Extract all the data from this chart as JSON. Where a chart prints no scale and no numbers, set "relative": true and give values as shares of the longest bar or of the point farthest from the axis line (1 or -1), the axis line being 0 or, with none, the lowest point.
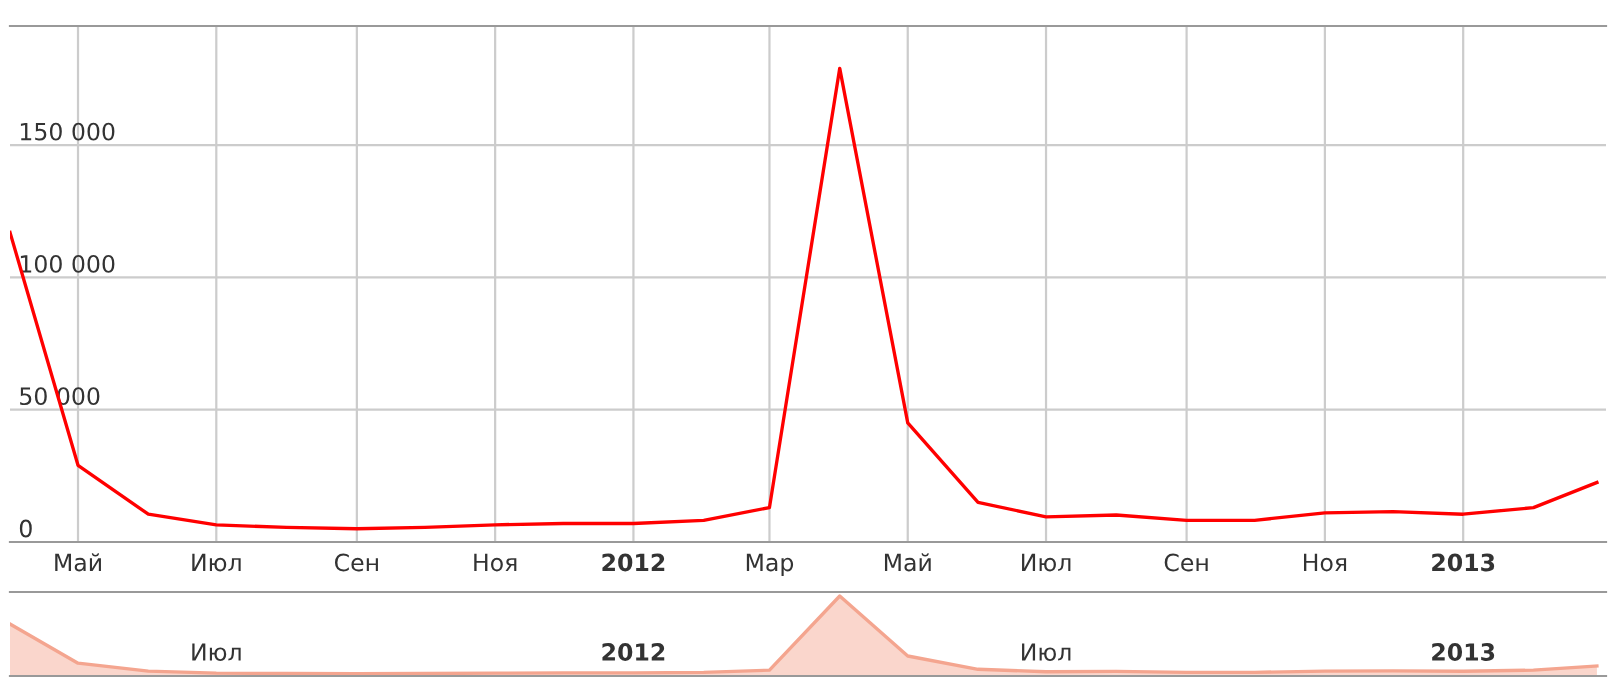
{
  "chart_data": [
    {
      "type": "line",
      "x": [
        "2011-04",
        "2011-05",
        "2011-06",
        "2011-07",
        "2011-08",
        "2011-09",
        "2011-10",
        "2011-11",
        "2011-12",
        "2012-01",
        "2012-02",
        "2012-03",
        "2012-04",
        "2012-05",
        "2012-06",
        "2012-07",
        "2012-08",
        "2012-09",
        "2012-10",
        "2012-11",
        "2012-12",
        "2013-01",
        "2013-02",
        "2013-03"
      ],
      "series": [
        {
          "color": "#ff0000",
          "values": [
            117000,
            29000,
            10500,
            6500,
            5500,
            5000,
            5500,
            6500,
            7000,
            7000,
            8200,
            13000,
            179000,
            45000,
            15000,
            9500,
            10200,
            8200,
            8200,
            11000,
            11500,
            10500,
            13000,
            22500
          ]
        }
      ],
      "xlim": [
        "2011-04-01",
        "2013-03-05"
      ],
      "xticks": [
        {
          "value": "2011-05",
          "label": "Май"
        },
        {
          "value": "2011-07",
          "label": "Июл"
        },
        {
          "value": "2011-09",
          "label": "Сен"
        },
        {
          "value": "2011-11",
          "label": "Ноя"
        },
        {
          "value": "2012-01",
          "label": "2012"
        },
        {
          "value": "2012-03",
          "label": "Мар"
        },
        {
          "value": "2012-05",
          "label": "Май"
        },
        {
          "value": "2012-07",
          "label": "Июл"
        },
        {
          "value": "2012-09",
          "label": "Сен"
        },
        {
          "value": "2012-11",
          "label": "Ноя"
        },
        {
          "value": "2013-01",
          "label": "2013"
        }
      ],
      "ylim": [
        0,
        195000
      ],
      "yticks": [
        {
          "value": 0,
          "label": "0"
        },
        {
          "value": 50000,
          "label": "50 000"
        },
        {
          "value": 100000,
          "label": "100 000"
        },
        {
          "value": 150000,
          "label": "150 000"
        }
      ],
      "grid": true,
      "line_style": "solid",
      "marker": "none"
    },
    {
      "type": "area",
      "relative": true,
      "x": [
        "2011-04",
        "2011-05",
        "2011-06",
        "2011-07",
        "2011-08",
        "2011-09",
        "2011-10",
        "2011-11",
        "2011-12",
        "2012-01",
        "2012-02",
        "2012-03",
        "2012-04",
        "2012-05",
        "2012-06",
        "2012-07",
        "2012-08",
        "2012-09",
        "2012-10",
        "2012-11",
        "2012-12",
        "2013-01",
        "2013-02",
        "2013-03"
      ],
      "series": [
        {
          "color": "#f4a58f",
          "values": [
            0.65,
            0.16,
            0.06,
            0.036,
            0.031,
            0.028,
            0.031,
            0.036,
            0.039,
            0.039,
            0.046,
            0.073,
            1,
            0.25,
            0.084,
            0.053,
            0.057,
            0.046,
            0.046,
            0.061,
            0.064,
            0.059,
            0.073,
            0.126
          ]
        }
      ],
      "xlim": [
        "2011-04-01",
        "2013-03-05"
      ],
      "xticks": [
        {
          "value": "2011-07",
          "label": "Июл"
        },
        {
          "value": "2012-01",
          "label": "2012"
        },
        {
          "value": "2012-07",
          "label": "Июл"
        },
        {
          "value": "2013-01",
          "label": "2013"
        }
      ],
      "grid": false
    }
  ]
}
